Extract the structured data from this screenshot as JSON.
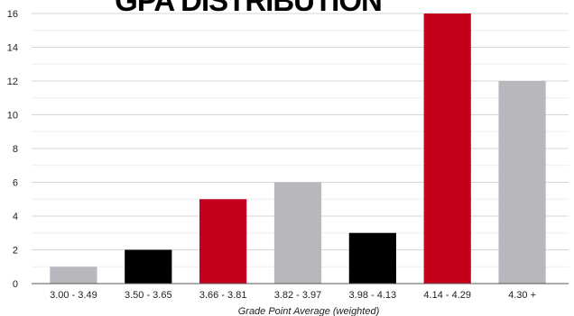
{
  "chart_data": {
    "type": "bar",
    "title": "GPA DISTRIBUTION",
    "xlabel": "Grade Point Average (weighted)",
    "ylabel": "",
    "ylim": [
      0,
      16
    ],
    "yticks": [
      0,
      2,
      4,
      6,
      8,
      10,
      12,
      14,
      16
    ],
    "grid": true,
    "categories": [
      "3.00 - 3.49",
      "3.50 - 3.65",
      "3.66 - 3.81",
      "3.82 - 3.97",
      "3.98 - 4.13",
      "4.14 - 4.29",
      "4.30 +"
    ],
    "values": [
      1,
      2,
      5,
      6,
      3,
      16,
      12
    ],
    "bar_colors": [
      "#b6b8bd",
      "#000000",
      "#c2001c",
      "#b6b8bd",
      "#000000",
      "#c2001c",
      "#b6b8bd"
    ]
  }
}
